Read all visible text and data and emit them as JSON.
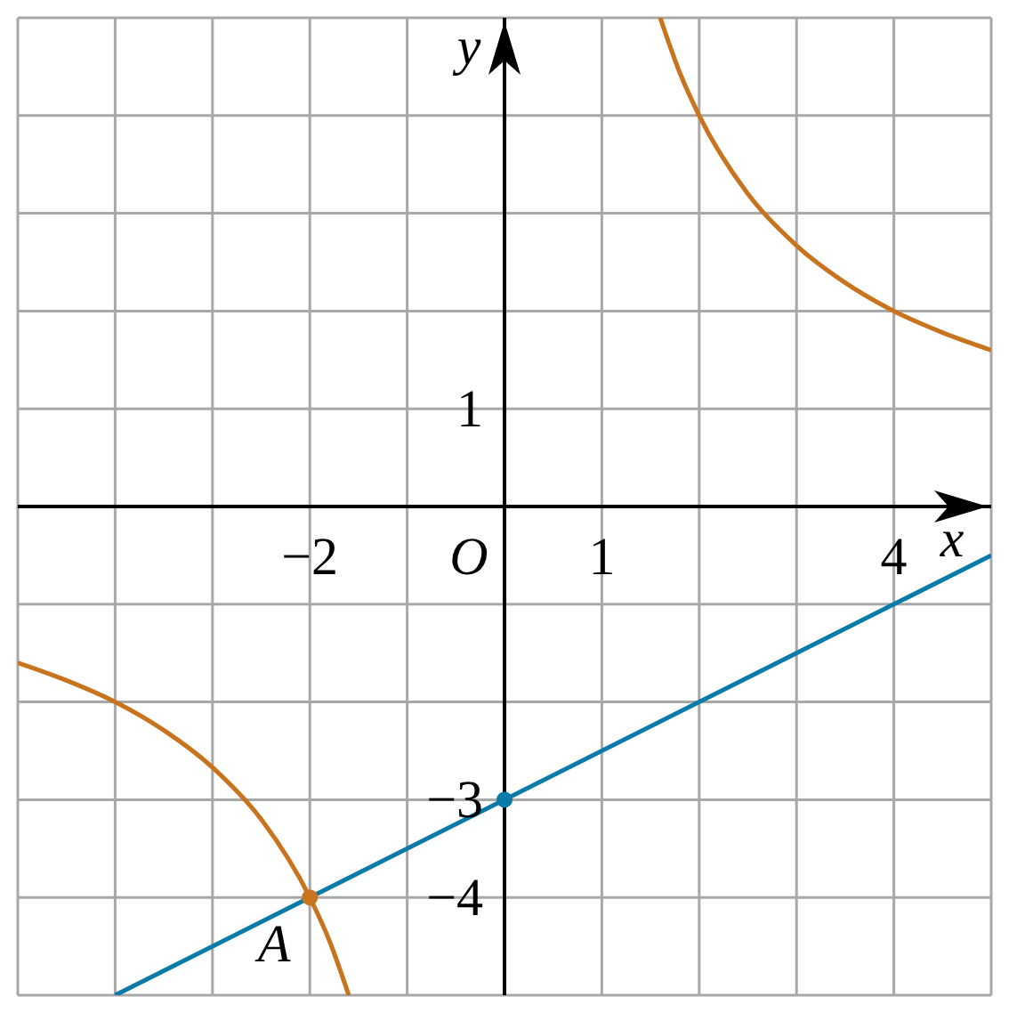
{
  "chart_data": {
    "type": "line",
    "xlabel": "x",
    "ylabel": "y",
    "xlim": [
      -5,
      5
    ],
    "ylim": [
      -5,
      5
    ],
    "xticks": [
      {
        "value": -5,
        "label": null
      },
      {
        "value": -4,
        "label": null
      },
      {
        "value": -3,
        "label": null
      },
      {
        "value": -2,
        "label": "−2"
      },
      {
        "value": -1,
        "label": null
      },
      {
        "value": 0,
        "label": null
      },
      1,
      {
        "value": 2,
        "label": null
      },
      {
        "value": 3,
        "label": null
      },
      4,
      {
        "value": 5,
        "label": null
      }
    ],
    "yticks": [
      {
        "value": -5,
        "label": null
      },
      {
        "value": -4,
        "label": "−4"
      },
      {
        "value": -3,
        "label": "−3"
      },
      {
        "value": -2,
        "label": null
      },
      {
        "value": -1,
        "label": null
      },
      {
        "value": 0,
        "label": null
      },
      1,
      {
        "value": 2,
        "label": null
      },
      {
        "value": 3,
        "label": null
      },
      {
        "value": 4,
        "label": null
      },
      {
        "value": 5,
        "label": null
      }
    ],
    "grid": true,
    "series": [
      {
        "marker": "none",
        "color": "#c8731e",
        "x": [
          1.6,
          1.8,
          2,
          2.5,
          3,
          3.5,
          4,
          4.5,
          5
        ],
        "values": [
          5,
          4.44,
          4,
          3.2,
          2.67,
          2.29,
          2,
          1.78,
          1.6
        ]
      },
      {
        "marker": "none",
        "color": "#c8731e",
        "x": [
          -5,
          -4.5,
          -4,
          -3.5,
          -3,
          -2.5,
          -2,
          -1.8,
          -1.6
        ],
        "values": [
          -1.6,
          -1.78,
          -2,
          -2.29,
          -2.67,
          -3.2,
          -4,
          -4.44,
          -5
        ]
      },
      {
        "marker": "none",
        "color": "#0a7aa8",
        "x": [
          -4,
          5
        ],
        "values": [
          -5,
          -0.5
        ]
      },
      {
        "type": "scatter",
        "marker": "circle",
        "color": "#c8731e",
        "x": [
          -2
        ],
        "values": [
          -4
        ]
      },
      {
        "type": "scatter",
        "marker": "circle",
        "color": "#0a7aa8",
        "x": [
          0
        ],
        "values": [
          -3
        ]
      }
    ],
    "annotations": [
      "O",
      {
        "text": "A",
        "x": -2,
        "y": -4
      }
    ]
  }
}
